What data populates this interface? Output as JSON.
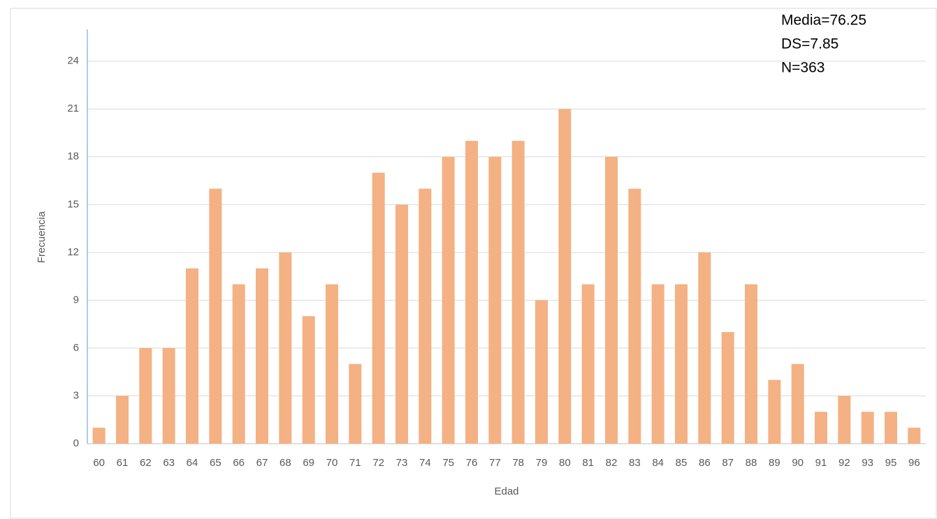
{
  "chart_data": {
    "type": "bar",
    "categories": [
      "60",
      "61",
      "62",
      "63",
      "64",
      "65",
      "66",
      "67",
      "68",
      "69",
      "70",
      "71",
      "72",
      "73",
      "74",
      "75",
      "76",
      "77",
      "78",
      "79",
      "80",
      "81",
      "82",
      "83",
      "84",
      "85",
      "86",
      "87",
      "88",
      "89",
      "90",
      "91",
      "92",
      "93",
      "95",
      "96"
    ],
    "values": [
      1,
      3,
      6,
      6,
      11,
      16,
      10,
      11,
      12,
      8,
      10,
      5,
      17,
      15,
      16,
      18,
      19,
      18,
      19,
      9,
      21,
      10,
      18,
      16,
      10,
      10,
      12,
      7,
      10,
      4,
      5,
      2,
      3,
      2,
      2,
      1
    ],
    "color": "#f4b183",
    "xlabel": "Edad",
    "ylabel": "Frecuencia",
    "annotations": [
      "Media=76.25",
      "DS=7.85",
      "N=363"
    ],
    "ylim": [
      0,
      26
    ],
    "yticks": [
      0,
      3,
      6,
      9,
      12,
      15,
      18,
      21,
      24
    ],
    "grid": true
  }
}
